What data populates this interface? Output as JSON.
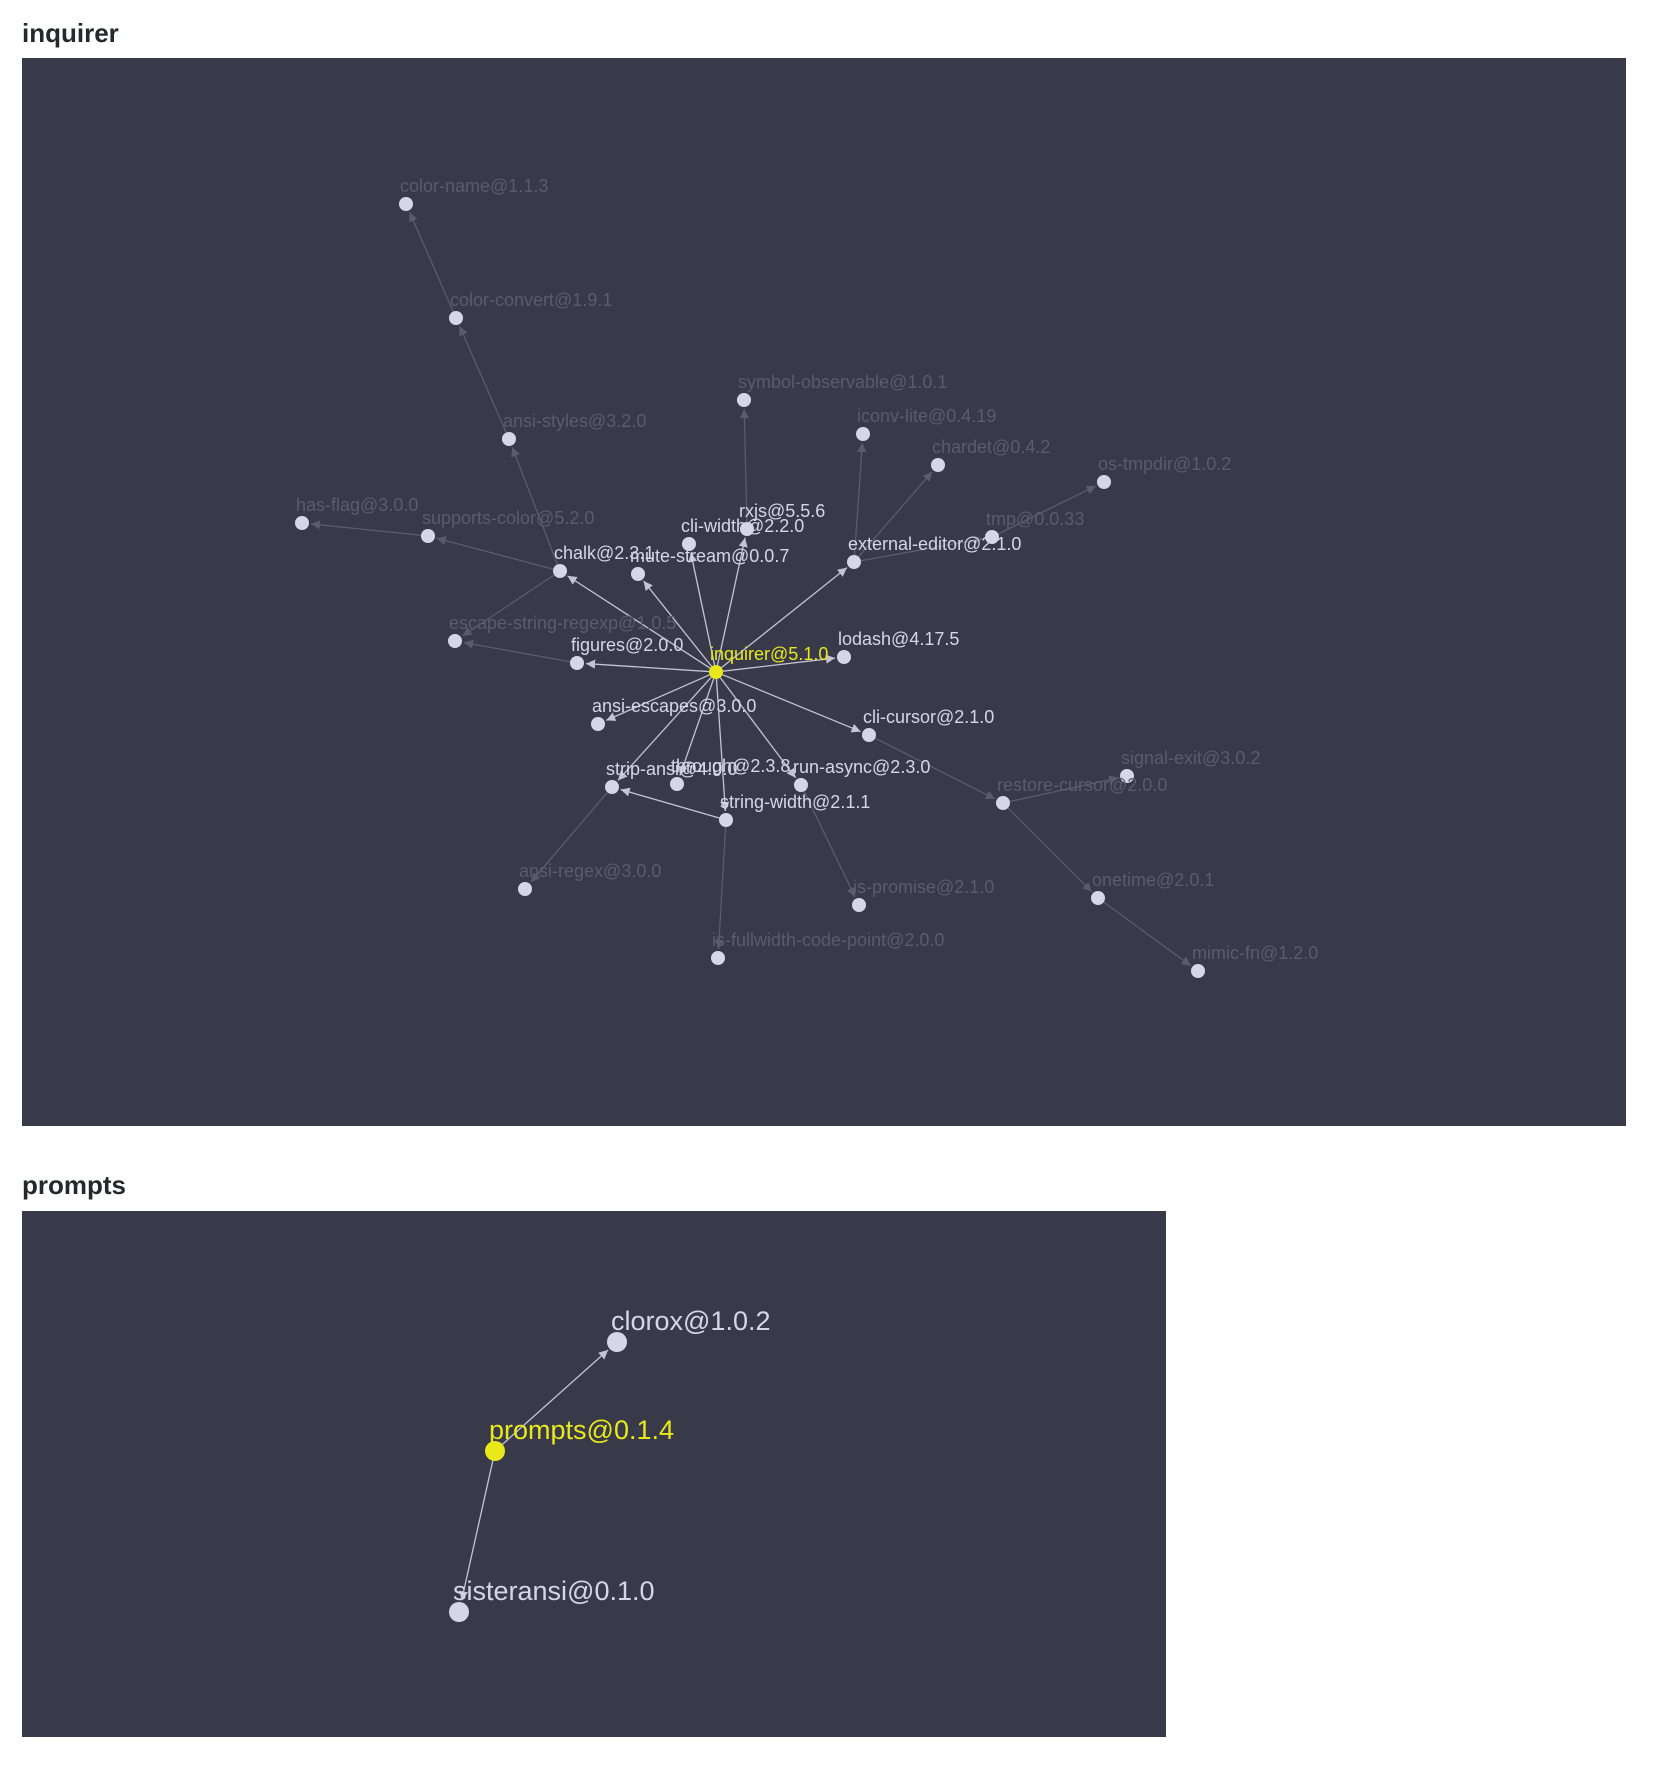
{
  "graphs": [
    {
      "id": "inquirer",
      "title": "inquirer",
      "nodes": [
        {
          "id": "inquirer",
          "label": "inquirer@5.1.0",
          "depth": 0,
          "root": true
        },
        {
          "id": "chalk",
          "label": "chalk@2.3.1",
          "depth": 1
        },
        {
          "id": "mute-stream",
          "label": "mute-stream@0.0.7",
          "depth": 1
        },
        {
          "id": "cli-width",
          "label": "cli-width@2.2.0",
          "depth": 1
        },
        {
          "id": "rxjs",
          "label": "rxjs@5.5.6",
          "depth": 1
        },
        {
          "id": "external-editor",
          "label": "external-editor@2.1.0",
          "depth": 1
        },
        {
          "id": "lodash",
          "label": "lodash@4.17.5",
          "depth": 1
        },
        {
          "id": "figures",
          "label": "figures@2.0.0",
          "depth": 1
        },
        {
          "id": "ansi-escapes",
          "label": "ansi-escapes@3.0.0",
          "depth": 1
        },
        {
          "id": "cli-cursor",
          "label": "cli-cursor@2.1.0",
          "depth": 1
        },
        {
          "id": "run-async",
          "label": "run-async@2.3.0",
          "depth": 1
        },
        {
          "id": "through",
          "label": "through@2.3.8",
          "depth": 1
        },
        {
          "id": "strip-ansi",
          "label": "strip-ansi@4.0.0",
          "depth": 1
        },
        {
          "id": "string-width",
          "label": "string-width@2.1.1",
          "depth": 1
        },
        {
          "id": "color-name",
          "label": "color-name@1.1.3",
          "depth": 2
        },
        {
          "id": "color-convert",
          "label": "color-convert@1.9.1",
          "depth": 2
        },
        {
          "id": "ansi-styles",
          "label": "ansi-styles@3.2.0",
          "depth": 2
        },
        {
          "id": "has-flag",
          "label": "has-flag@3.0.0",
          "depth": 2
        },
        {
          "id": "supports-color",
          "label": "supports-color@5.2.0",
          "depth": 2
        },
        {
          "id": "escape-string-regexp",
          "label": "escape-string-regexp@1.0.5",
          "depth": 2
        },
        {
          "id": "symbol-observable",
          "label": "symbol-observable@1.0.1",
          "depth": 2
        },
        {
          "id": "iconv-lite",
          "label": "iconv-lite@0.4.19",
          "depth": 2
        },
        {
          "id": "chardet",
          "label": "chardet@0.4.2",
          "depth": 2
        },
        {
          "id": "os-tmpdir",
          "label": "os-tmpdir@1.0.2",
          "depth": 2
        },
        {
          "id": "tmp",
          "label": "tmp@0.0.33",
          "depth": 2
        },
        {
          "id": "signal-exit",
          "label": "signal-exit@3.0.2",
          "depth": 2
        },
        {
          "id": "restore-cursor",
          "label": "restore-cursor@2.0.0",
          "depth": 2
        },
        {
          "id": "onetime",
          "label": "onetime@2.0.1",
          "depth": 2
        },
        {
          "id": "mimic-fn",
          "label": "mimic-fn@1.2.0",
          "depth": 2
        },
        {
          "id": "ansi-regex",
          "label": "ansi-regex@3.0.0",
          "depth": 2
        },
        {
          "id": "is-promise",
          "label": "is-promise@2.1.0",
          "depth": 2
        },
        {
          "id": "is-fullwidth-code-point",
          "label": "is-fullwidth-code-point@2.0.0",
          "depth": 2
        }
      ],
      "edges": [
        [
          "inquirer",
          "chalk"
        ],
        [
          "inquirer",
          "mute-stream"
        ],
        [
          "inquirer",
          "cli-width"
        ],
        [
          "inquirer",
          "rxjs"
        ],
        [
          "inquirer",
          "external-editor"
        ],
        [
          "inquirer",
          "lodash"
        ],
        [
          "inquirer",
          "figures"
        ],
        [
          "inquirer",
          "ansi-escapes"
        ],
        [
          "inquirer",
          "cli-cursor"
        ],
        [
          "inquirer",
          "run-async"
        ],
        [
          "inquirer",
          "through"
        ],
        [
          "inquirer",
          "strip-ansi"
        ],
        [
          "inquirer",
          "string-width"
        ],
        [
          "chalk",
          "ansi-styles"
        ],
        [
          "chalk",
          "supports-color"
        ],
        [
          "chalk",
          "escape-string-regexp"
        ],
        [
          "ansi-styles",
          "color-convert"
        ],
        [
          "color-convert",
          "color-name"
        ],
        [
          "supports-color",
          "has-flag"
        ],
        [
          "figures",
          "escape-string-regexp"
        ],
        [
          "rxjs",
          "symbol-observable"
        ],
        [
          "external-editor",
          "iconv-lite"
        ],
        [
          "external-editor",
          "chardet"
        ],
        [
          "external-editor",
          "tmp"
        ],
        [
          "tmp",
          "os-tmpdir"
        ],
        [
          "cli-cursor",
          "restore-cursor"
        ],
        [
          "restore-cursor",
          "signal-exit"
        ],
        [
          "restore-cursor",
          "onetime"
        ],
        [
          "onetime",
          "mimic-fn"
        ],
        [
          "strip-ansi",
          "ansi-regex"
        ],
        [
          "string-width",
          "strip-ansi"
        ],
        [
          "string-width",
          "is-fullwidth-code-point"
        ],
        [
          "run-async",
          "is-promise"
        ]
      ]
    },
    {
      "id": "prompts",
      "title": "prompts",
      "nodes": [
        {
          "id": "prompts",
          "label": "prompts@0.1.4",
          "depth": 0,
          "root": true
        },
        {
          "id": "clorox",
          "label": "clorox@1.0.2",
          "depth": 1
        },
        {
          "id": "sisteransi",
          "label": "sisteransi@0.1.0",
          "depth": 1
        }
      ],
      "edges": [
        [
          "prompts",
          "clorox"
        ],
        [
          "prompts",
          "sisteransi"
        ]
      ]
    }
  ],
  "colors": {
    "background": "#383a4a",
    "root": "#e8e81a",
    "node": "#d6d6e6",
    "node_dim": "#595c6e",
    "edge": "#c3c4d4",
    "edge_dim": "#5a5c6e"
  }
}
